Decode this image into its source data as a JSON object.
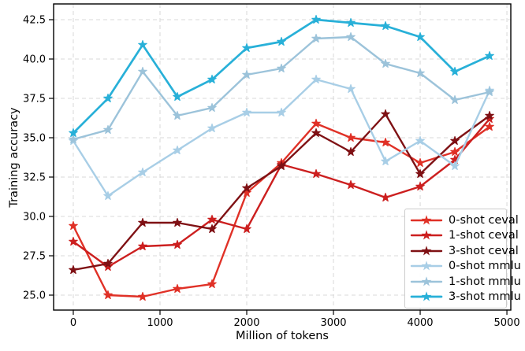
{
  "chart_data": {
    "type": "line",
    "title": "",
    "xlabel": "Million of tokens",
    "ylabel": "Training accuracy",
    "grid": true,
    "legend_position": "lower right",
    "xlim": [
      -227,
      5045
    ],
    "ylim": [
      24.05,
      43.5
    ],
    "xticks": [
      0,
      1000,
      2000,
      3000,
      4000,
      5000
    ],
    "xtick_labels": [
      "0",
      "1000",
      "2000",
      "3000",
      "4000",
      "5000"
    ],
    "yticks": [
      25.0,
      27.5,
      30.0,
      32.5,
      35.0,
      37.5,
      40.0,
      42.5
    ],
    "ytick_labels": [
      "25.0",
      "27.5",
      "30.0",
      "32.5",
      "35.0",
      "37.5",
      "40.0",
      "42.5"
    ],
    "x": [
      0,
      400,
      800,
      1200,
      1600,
      2000,
      2400,
      2800,
      3200,
      3600,
      4000,
      4400,
      4800
    ],
    "series": [
      {
        "name": "0-shot ceval",
        "color": "#e03127",
        "linewidth": 2.4,
        "marker": "star",
        "values": [
          29.4,
          25.0,
          24.9,
          25.4,
          25.7,
          31.5,
          33.4,
          35.9,
          35.0,
          34.7,
          33.4,
          34.1,
          35.7
        ]
      },
      {
        "name": "1-shot ceval",
        "color": "#cc1f1f",
        "linewidth": 2.4,
        "marker": "star",
        "values": [
          28.4,
          26.8,
          28.1,
          28.2,
          29.8,
          29.2,
          33.3,
          32.7,
          32.0,
          31.2,
          31.9,
          33.6,
          36.2
        ]
      },
      {
        "name": "3-shot ceval",
        "color": "#7f1114",
        "linewidth": 2.4,
        "marker": "star",
        "values": [
          26.6,
          27.0,
          29.6,
          29.6,
          29.2,
          31.8,
          33.2,
          35.3,
          34.1,
          36.5,
          32.7,
          34.8,
          36.4
        ]
      },
      {
        "name": "0-shot mmlu",
        "color": "#a8cee6",
        "linewidth": 2.4,
        "marker": "star",
        "values": [
          34.8,
          31.3,
          32.8,
          34.2,
          35.6,
          36.6,
          36.6,
          38.7,
          38.1,
          33.5,
          34.8,
          33.2,
          38.0
        ]
      },
      {
        "name": "1-shot mmlu",
        "color": "#9cc3da",
        "linewidth": 2.4,
        "marker": "star",
        "values": [
          34.9,
          35.5,
          39.2,
          36.4,
          36.9,
          39.0,
          39.4,
          41.3,
          41.4,
          39.7,
          39.1,
          37.4,
          37.9
        ]
      },
      {
        "name": "3-shot mmlu",
        "color": "#28b0d8",
        "linewidth": 2.7,
        "marker": "star",
        "values": [
          35.3,
          37.5,
          40.9,
          37.6,
          38.7,
          40.7,
          41.1,
          42.5,
          42.3,
          42.1,
          41.4,
          39.2,
          40.2
        ]
      }
    ],
    "colors": {
      "grid": "#d8d8d8",
      "spine": "#000000",
      "tick_label": "#000000",
      "background": "#ffffff"
    }
  }
}
